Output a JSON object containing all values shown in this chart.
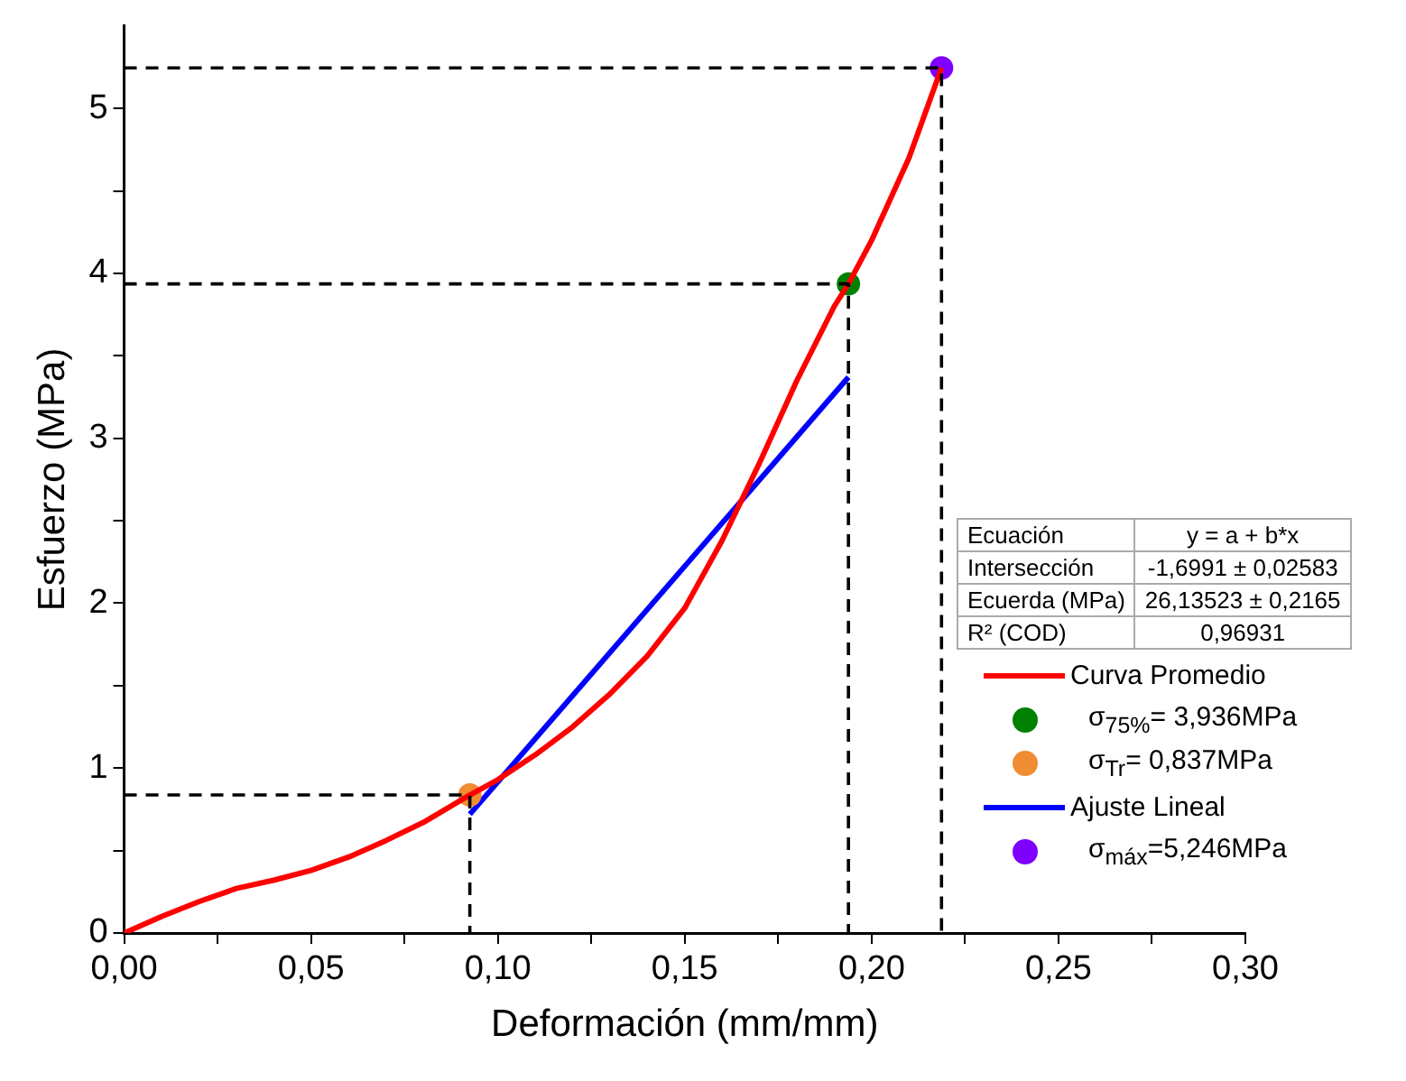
{
  "chart_data": {
    "type": "line",
    "xlabel": "Deformación (mm/mm)",
    "ylabel": "Esfuerzo (MPa)",
    "xlim": [
      0,
      0.3
    ],
    "ylim": [
      0,
      5.5
    ],
    "xticks": [
      {
        "value": 0,
        "label": "0,00"
      },
      {
        "value": 0.025,
        "label": null
      },
      {
        "value": 0.05,
        "label": "0,05"
      },
      {
        "value": 0.075,
        "label": null
      },
      {
        "value": 0.1,
        "label": "0,10"
      },
      {
        "value": 0.125,
        "label": null
      },
      {
        "value": 0.15,
        "label": "0,15"
      },
      {
        "value": 0.175,
        "label": null
      },
      {
        "value": 0.2,
        "label": "0,20"
      },
      {
        "value": 0.225,
        "label": null
      },
      {
        "value": 0.25,
        "label": "0,25"
      },
      {
        "value": 0.275,
        "label": null
      },
      {
        "value": 0.3,
        "label": "0,30"
      }
    ],
    "yticks": [
      0,
      {
        "value": 0.5,
        "label": null
      },
      1,
      {
        "value": 1.5,
        "label": null
      },
      2,
      {
        "value": 2.5,
        "label": null
      },
      3,
      {
        "value": 3.5,
        "label": null
      },
      4,
      {
        "value": 4.5,
        "label": null
      },
      5
    ],
    "grid": false,
    "legend": "right",
    "annotations": [
      "Ecuación",
      "y = a + b*x",
      "Intersección",
      "-1,6991 ± 0,02583",
      "Ecuerda (MPa)",
      "26,13523 ± 0,2165",
      "R² (COD)",
      "0,96931"
    ],
    "series": [
      {
        "type": "line",
        "line_style": "dashed",
        "color": "#000000",
        "x": [
          0,
          0.0925,
          0.0925
        ],
        "values": [
          0.837,
          0.837,
          0
        ]
      },
      {
        "type": "line",
        "line_style": "dashed",
        "color": "#000000",
        "x": [
          0,
          0.1938,
          0.1938
        ],
        "values": [
          3.936,
          3.936,
          0
        ]
      },
      {
        "type": "line",
        "line_style": "dashed",
        "color": "#000000",
        "x": [
          0,
          0.2187,
          0.2187
        ],
        "values": [
          5.246,
          5.246,
          0
        ]
      },
      {
        "name": "Curva Promedio",
        "color": "#ff0000",
        "x": [
          0,
          0.01,
          0.02,
          0.03,
          0.04,
          0.05,
          0.06,
          0.07,
          0.08,
          0.0925,
          0.1,
          0.11,
          0.12,
          0.13,
          0.14,
          0.15,
          0.16,
          0.17,
          0.18,
          0.19,
          0.1938,
          0.2,
          0.21,
          0.2187
        ],
        "values": [
          0,
          0.1,
          0.19,
          0.27,
          0.32,
          0.38,
          0.46,
          0.56,
          0.67,
          0.837,
          0.93,
          1.08,
          1.25,
          1.45,
          1.68,
          1.97,
          2.38,
          2.85,
          3.35,
          3.8,
          3.936,
          4.2,
          4.7,
          5.246
        ]
      },
      {
        "type": "scatter",
        "name": "σ$_{75%}$= 3,936MPa",
        "color": "#008000",
        "x": [
          0.1938
        ],
        "values": [
          3.936
        ]
      },
      {
        "type": "scatter",
        "name": "σ$_{Tr}$= 0,837MPa",
        "color": "#f08c32",
        "x": [
          0.0925
        ],
        "values": [
          0.837
        ]
      },
      {
        "name": "Ajuste Lineal",
        "color": "#0000ff",
        "x": [
          0.0925,
          0.1938
        ],
        "values": [
          0.72,
          3.37
        ]
      },
      {
        "type": "scatter",
        "name": "σ$_{máx}$=5,246MPa",
        "color": "#8000ff",
        "x": [
          0.2187
        ],
        "values": [
          5.246
        ]
      }
    ]
  }
}
